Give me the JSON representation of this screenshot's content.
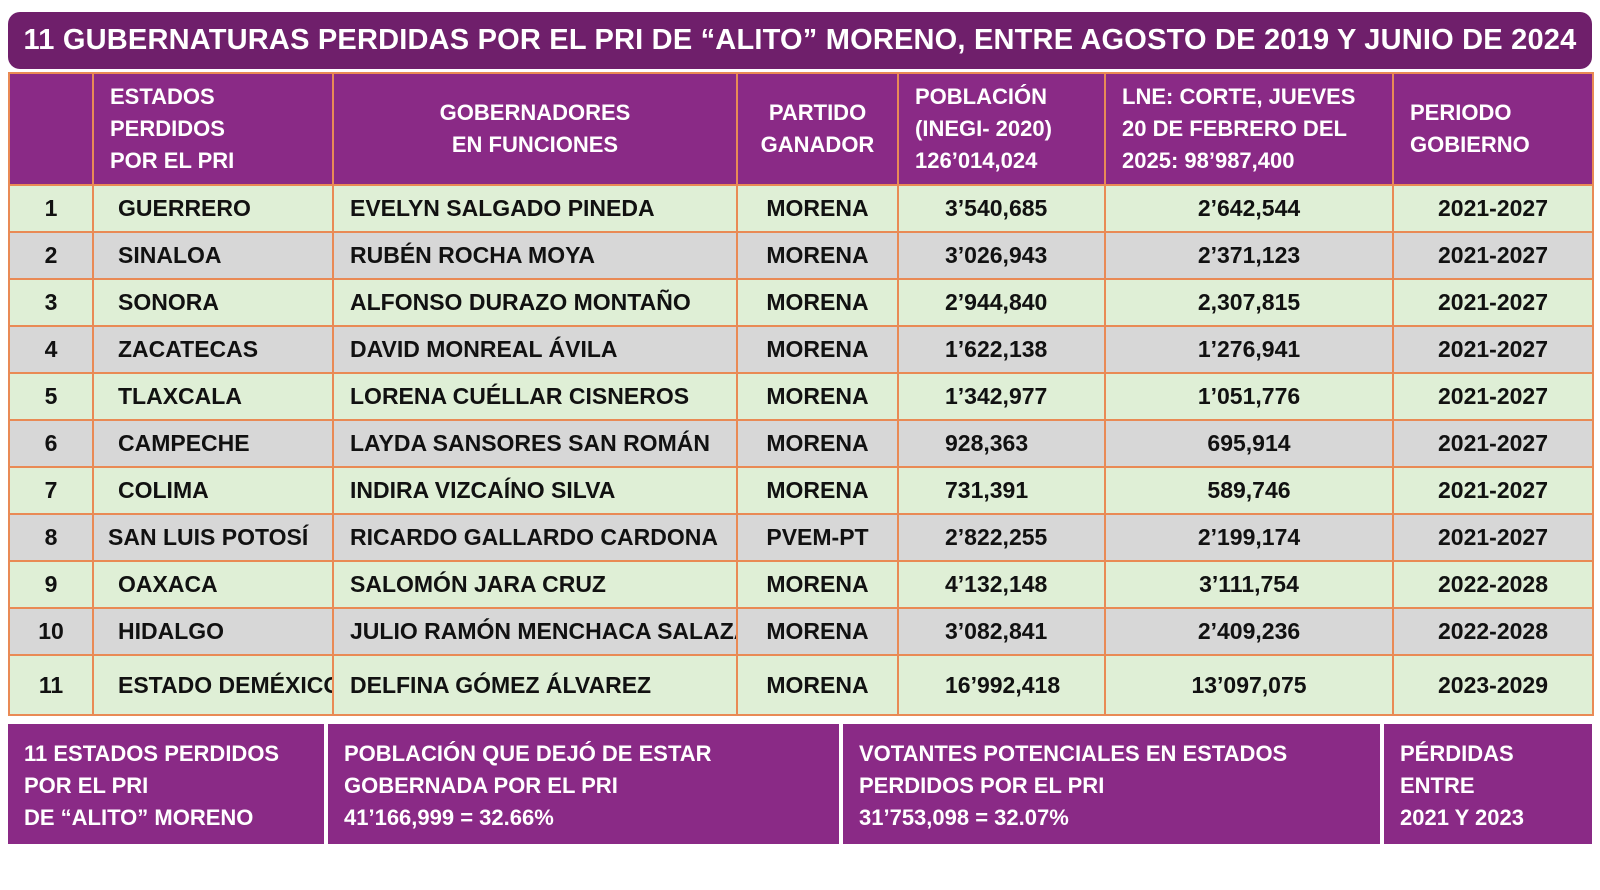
{
  "title": "11 GUBERNATURAS PERDIDAS POR EL PRI DE “ALITO” MORENO,  ENTRE AGOSTO DE 2019 Y JUNIO DE 2024",
  "headers": {
    "estados": [
      "ESTADOS",
      "PERDIDOS",
      "POR EL PRI"
    ],
    "gobernadores": [
      "GOBERNADORES",
      "EN FUNCIONES"
    ],
    "partido": [
      "PARTIDO",
      "GANADOR"
    ],
    "poblacion": [
      "POBLACIÓN",
      "(INEGI- 2020)",
      "126’014,024"
    ],
    "lne": [
      "LNE: CORTE,  JUEVES",
      "20 DE FEBRERO DEL",
      "2025: 98’987,400"
    ],
    "periodo": [
      "PERIODO",
      "GOBIERNO"
    ]
  },
  "rows": [
    {
      "num": "1",
      "estado": "GUERRERO",
      "gobernador": "EVELYN SALGADO PINEDA",
      "partido": "MORENA",
      "poblacion": "3’540,685",
      "lne": "2’642,544",
      "periodo": "2021-2027"
    },
    {
      "num": "2",
      "estado": "SINALOA",
      "gobernador": "RUBÉN ROCHA MOYA",
      "partido": "MORENA",
      "poblacion": "3’026,943",
      "lne": "2’371,123",
      "periodo": "2021-2027"
    },
    {
      "num": "3",
      "estado": "SONORA",
      "gobernador": "ALFONSO DURAZO MONTAÑO",
      "partido": "MORENA",
      "poblacion": "2’944,840",
      "lne": "2,307,815",
      "periodo": "2021-2027"
    },
    {
      "num": "4",
      "estado": "ZACATECAS",
      "gobernador": "DAVID MONREAL ÁVILA",
      "partido": "MORENA",
      "poblacion": "1’622,138",
      "lne": "1’276,941",
      "periodo": "2021-2027"
    },
    {
      "num": "5",
      "estado": "TLAXCALA",
      "gobernador": "LORENA CUÉLLAR CISNEROS",
      "partido": "MORENA",
      "poblacion": "1’342,977",
      "lne": "1’051,776",
      "periodo": "2021-2027"
    },
    {
      "num": "6",
      "estado": "CAMPECHE",
      "gobernador": "LAYDA SANSORES SAN ROMÁN",
      "partido": "MORENA",
      "poblacion": "928,363",
      "lne": "695,914",
      "periodo": "2021-2027"
    },
    {
      "num": "7",
      "estado": "COLIMA",
      "gobernador": "INDIRA VIZCAÍNO SILVA",
      "partido": "MORENA",
      "poblacion": "731,391",
      "lne": "589,746",
      "periodo": "2021-2027"
    },
    {
      "num": "8",
      "estado": "SAN LUIS POTOSÍ",
      "gobernador": "RICARDO GALLARDO CARDONA",
      "partido": "PVEM-PT",
      "poblacion": "2’822,255",
      "lne": "2’199,174",
      "periodo": "2021-2027"
    },
    {
      "num": "9",
      "estado": "OAXACA",
      "gobernador": "SALOMÓN JARA CRUZ",
      "partido": "MORENA",
      "poblacion": "4’132,148",
      "lne": "3’111,754",
      "periodo": "2022-2028"
    },
    {
      "num": "10",
      "estado": "HIDALGO",
      "gobernador": "JULIO RAMÓN MENCHACA SALAZAR",
      "partido": "MORENA",
      "poblacion": "3’082,841",
      "lne": "2’409,236",
      "periodo": "2022-2028"
    },
    {
      "num": "11",
      "estado": "ESTADO DEMÉXICO",
      "gobernador": "DELFINA GÓMEZ ÁLVAREZ",
      "partido": "MORENA",
      "poblacion": "16’992,418",
      "lne": "13’097,075",
      "periodo": "2023-2029"
    }
  ],
  "footer": {
    "estados": [
      "11 ESTADOS PERDIDOS",
      "POR EL PRI",
      "DE “ALITO” MORENO"
    ],
    "poblacion": [
      "POBLACIÓN QUE DEJÓ DE ESTAR",
      "GOBERNADA POR EL PRI",
      "41’166,999 = 32.66%"
    ],
    "votantes": [
      "VOTANTES POTENCIALES EN ESTADOS",
      "PERDIDOS POR EL PRI",
      "31’753,098 = 32.07%"
    ],
    "perdidas": [
      "PÉRDIDAS",
      "ENTRE",
      "2021 Y 2023"
    ]
  },
  "colors": {
    "title_bg": "#6f1f6b",
    "header_bg": "#8a2a86",
    "row_green": "#dfefd6",
    "row_gray": "#d7d7d7",
    "border": "#e98a55"
  }
}
